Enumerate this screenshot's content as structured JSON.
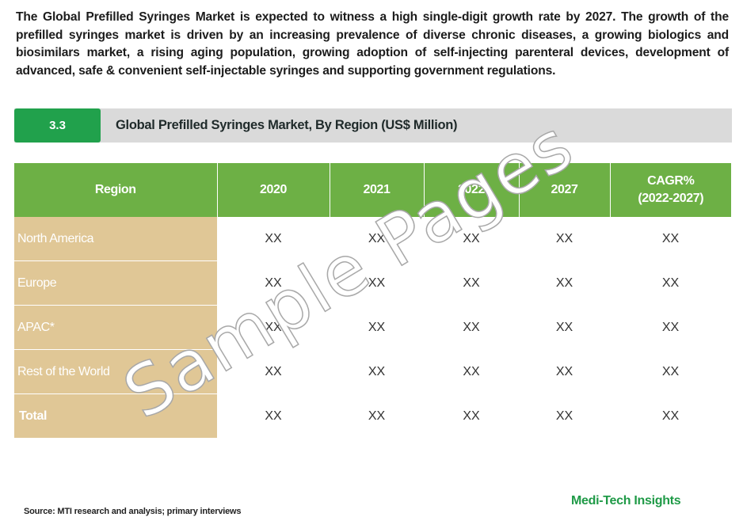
{
  "intro_text": "The Global Prefilled Syringes Market is expected to witness a high single-digit growth rate by 2027. The growth of the prefilled syringes market is driven by an increasing prevalence of diverse chronic diseases, a growing biologics and biosimilars market, a rising aging population, growing adoption of self-injecting parenteral devices, development of advanced, safe & convenient self-injectable syringes and supporting government regulations.",
  "section": {
    "number": "3.3",
    "title": "Global Prefilled Syringes Market, By Region (US$ Million)"
  },
  "table": {
    "headers": [
      "Region",
      "2020",
      "2021",
      "2022",
      "2027",
      "CAGR%",
      "(2022-2027)"
    ],
    "rows": [
      {
        "region": "North America",
        "values": [
          "XX",
          "XX",
          "XX",
          "XX",
          "XX"
        ]
      },
      {
        "region": "Europe",
        "values": [
          "XX",
          "XX",
          "XX",
          "XX",
          "XX"
        ]
      },
      {
        "region": "APAC*",
        "values": [
          "XX",
          "XX",
          "XX",
          "XX",
          "XX"
        ]
      },
      {
        "region": "Rest of the World",
        "values": [
          "XX",
          "XX",
          "XX",
          "XX",
          "XX"
        ]
      },
      {
        "region": "Total",
        "values": [
          "XX",
          "XX",
          "XX",
          "XX",
          "XX"
        ]
      }
    ]
  },
  "watermark": "Sample Pages",
  "source": "Source: MTI research and analysis; primary interviews",
  "brand": "Medi-Tech Insights",
  "colors": {
    "section_number_bg": "#21a14c",
    "section_bar_bg": "#dadada",
    "table_header_bg": "#6db045",
    "region_cell_bg": "#e0c796",
    "brand_text": "#1f9a47"
  }
}
